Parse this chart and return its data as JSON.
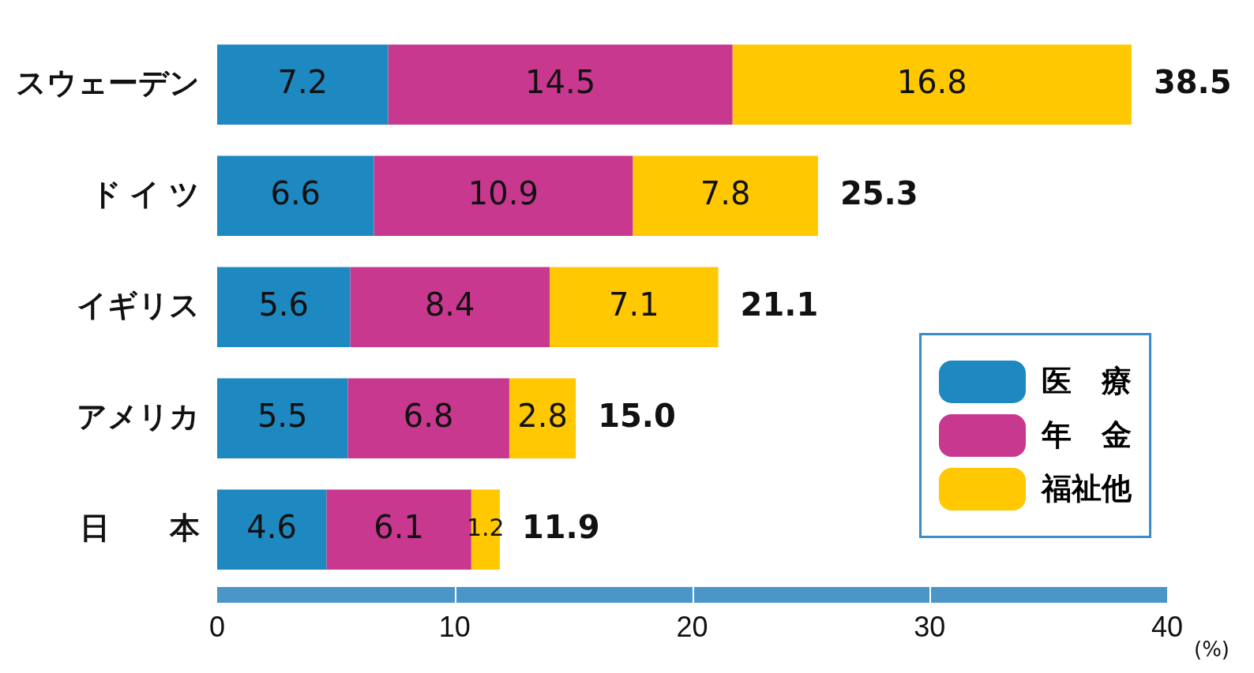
{
  "chart_data": {
    "type": "bar",
    "orientation": "horizontal",
    "stacked": true,
    "categories": [
      "スウェーデン",
      "ド イ ツ",
      "イギリス",
      "アメリカ",
      "日　　本"
    ],
    "series": [
      {
        "name": "医　療",
        "color": "#1e88c0",
        "values": [
          7.2,
          6.6,
          5.6,
          5.5,
          4.6
        ]
      },
      {
        "name": "年　金",
        "color": "#c8388f",
        "values": [
          14.5,
          10.9,
          8.4,
          6.8,
          6.1
        ]
      },
      {
        "name": "福祉他",
        "color": "#ffc800",
        "values": [
          16.8,
          7.8,
          7.1,
          2.8,
          1.2
        ]
      }
    ],
    "totals": [
      "38.5",
      "25.3",
      "21.1",
      "15.0",
      "11.9"
    ],
    "data_labels": true,
    "xlim": [
      0,
      40
    ],
    "xticks": [
      0,
      10,
      20,
      30,
      40
    ],
    "xlabel": "(%)",
    "grid": false,
    "legend": "bottom right"
  }
}
